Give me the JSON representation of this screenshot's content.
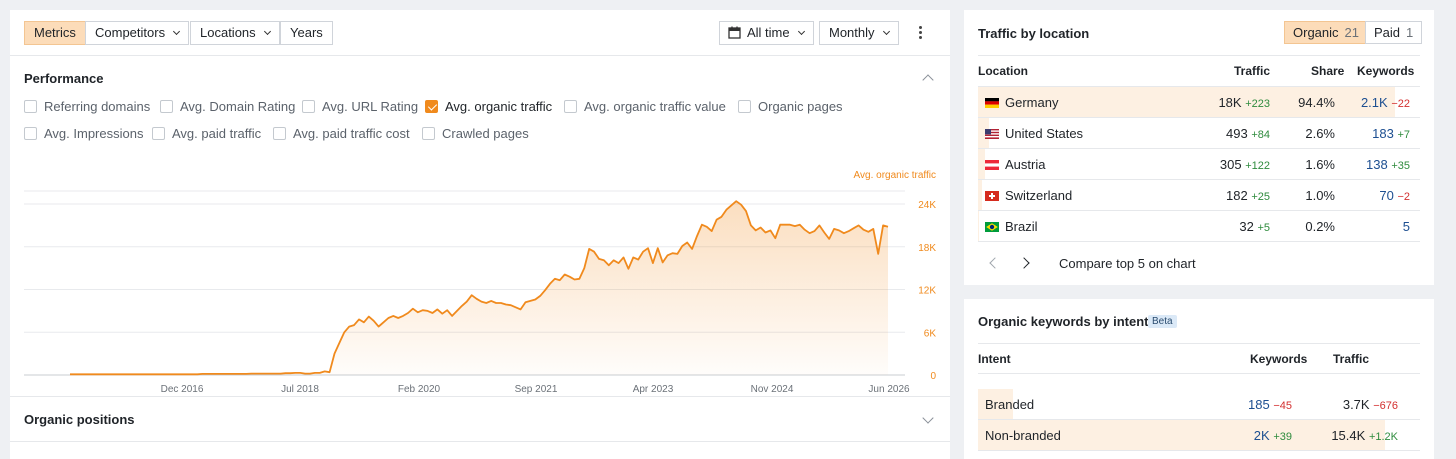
{
  "toolbar": {
    "metrics": "Metrics",
    "competitors": "Competitors",
    "locations": "Locations",
    "years": "Years",
    "date_range": "All time",
    "interval": "Monthly"
  },
  "performance": {
    "title": "Performance",
    "checkboxes": [
      {
        "label": "Referring domains",
        "checked": false
      },
      {
        "label": "Avg. Domain Rating",
        "checked": false
      },
      {
        "label": "Avg. URL Rating",
        "checked": false
      },
      {
        "label": "Avg. organic traffic",
        "checked": true
      },
      {
        "label": "Avg. organic traffic value",
        "checked": false
      },
      {
        "label": "Organic pages",
        "checked": false
      },
      {
        "label": "Avg. Impressions",
        "checked": false
      },
      {
        "label": "Avg. paid traffic",
        "checked": false
      },
      {
        "label": "Avg. paid traffic cost",
        "checked": false
      },
      {
        "label": "Crawled pages",
        "checked": false
      }
    ]
  },
  "organic_positions": {
    "title": "Organic positions"
  },
  "chart_data": {
    "type": "area",
    "series": [
      {
        "name": "Avg. organic traffic",
        "color": "#f08a1d",
        "values": [
          100,
          100,
          100,
          100,
          100,
          100,
          100,
          100,
          100,
          100,
          100,
          100,
          100,
          100,
          100,
          100,
          100,
          100,
          100,
          100,
          100,
          100,
          100,
          100,
          100,
          100,
          100,
          150,
          150,
          150,
          150,
          150,
          150,
          150,
          150,
          150,
          150,
          200,
          200,
          200,
          200,
          200,
          200,
          200,
          250,
          250,
          300,
          300,
          200,
          200,
          300,
          300,
          500,
          400,
          3000,
          4500,
          6000,
          6800,
          7000,
          7800,
          7400,
          8200,
          7600,
          6800,
          7400,
          8000,
          8300,
          8000,
          8300,
          8700,
          9300,
          8800,
          9100,
          9000,
          8700,
          9200,
          8600,
          9100,
          8300,
          9000,
          9700,
          10300,
          11200,
          10700,
          10300,
          10100,
          10400,
          10100,
          10100,
          9900,
          9800,
          9500,
          9200,
          10200,
          10400,
          10600,
          11100,
          11900,
          12800,
          13500,
          13300,
          14100,
          13800,
          13400,
          13500,
          15000,
          17700,
          17300,
          16300,
          16100,
          15400,
          16100,
          15700,
          16500,
          14900,
          16500,
          16200,
          17300,
          17800,
          15700,
          17800,
          15800,
          16800,
          17100,
          17000,
          18100,
          18600,
          17700,
          19500,
          21100,
          20800,
          20200,
          21800,
          22200,
          23200,
          23800,
          24400,
          23900,
          23000,
          21000,
          20300,
          20700,
          20000,
          20300,
          19200,
          21100,
          21100,
          21100,
          20900,
          21100,
          20400,
          19900,
          20200,
          21000,
          20000,
          19100,
          20500,
          20300,
          19900,
          20200,
          20600,
          21000,
          20400,
          20100,
          20500,
          17000,
          21000,
          20800
        ]
      }
    ],
    "x_tick_labels": [
      "Dec 2016",
      "Jul 2018",
      "Feb 2020",
      "Sep 2021",
      "Apr 2023",
      "Nov 2024",
      "Jun 2026"
    ],
    "y_tick_labels": [
      "0",
      "6K",
      "12K",
      "18K",
      "24K"
    ],
    "y_ticks": [
      0,
      6000,
      12000,
      18000,
      24000
    ],
    "ylim": [
      0,
      24000
    ],
    "legend_label": "Avg. organic traffic",
    "grid": true
  },
  "traffic_by_location": {
    "title": "Traffic by location",
    "tabs": [
      {
        "label": "Organic",
        "count": "21",
        "active": true
      },
      {
        "label": "Paid",
        "count": "1",
        "active": false
      }
    ],
    "headers": {
      "location": "Location",
      "traffic": "Traffic",
      "share": "Share",
      "keywords": "Keywords"
    },
    "rows": [
      {
        "flag": "germany-flag-icon",
        "country": "Germany",
        "traffic": "18K",
        "traffic_delta": "+223",
        "share": "94.4%",
        "keywords": "2.1K",
        "kw_delta": "−22",
        "kw_delta_dir": "neg",
        "share_value": 94.4
      },
      {
        "flag": "usa-flag-icon",
        "country": "United States",
        "traffic": "493",
        "traffic_delta": "+84",
        "share": "2.6%",
        "keywords": "183",
        "kw_delta": "+7",
        "kw_delta_dir": "pos",
        "share_value": 2.6
      },
      {
        "flag": "austria-flag-icon",
        "country": "Austria",
        "traffic": "305",
        "traffic_delta": "+122",
        "share": "1.6%",
        "keywords": "138",
        "kw_delta": "+35",
        "kw_delta_dir": "pos",
        "share_value": 1.6
      },
      {
        "flag": "switzerland-flag-icon",
        "country": "Switzerland",
        "traffic": "182",
        "traffic_delta": "+25",
        "share": "1.0%",
        "keywords": "70",
        "kw_delta": "−2",
        "kw_delta_dir": "neg",
        "share_value": 1.0
      },
      {
        "flag": "brazil-flag-icon",
        "country": "Brazil",
        "traffic": "32",
        "traffic_delta": "+5",
        "share": "0.2%",
        "keywords": "5",
        "kw_delta": "",
        "kw_delta_dir": "",
        "share_value": 0.2
      }
    ],
    "compare_label": "Compare top 5 on chart"
  },
  "keywords_by_intent": {
    "title": "Organic keywords by intent",
    "badge": "Beta",
    "headers": {
      "intent": "Intent",
      "keywords": "Keywords",
      "traffic": "Traffic"
    },
    "rows": [
      {
        "intent": "Branded",
        "keywords": "185",
        "kw_delta": "−45",
        "kw_delta_dir": "neg",
        "traffic": "3.7K",
        "traffic_delta": "−676",
        "traffic_delta_dir": "neg",
        "share_value": 8
      },
      {
        "intent": "Non-branded",
        "keywords": "2K",
        "kw_delta": "+39",
        "kw_delta_dir": "pos",
        "traffic": "15.4K",
        "traffic_delta": "+1.2K",
        "traffic_delta_dir": "pos",
        "share_value": 92
      }
    ]
  },
  "colors": {
    "accent": "#f08a1d",
    "active_bg": "#fcdcb9",
    "row_highlight": "#fdf0e2",
    "positive": "#2e8b3d",
    "negative": "#d32f2f",
    "link_blue": "#1d4f91"
  }
}
